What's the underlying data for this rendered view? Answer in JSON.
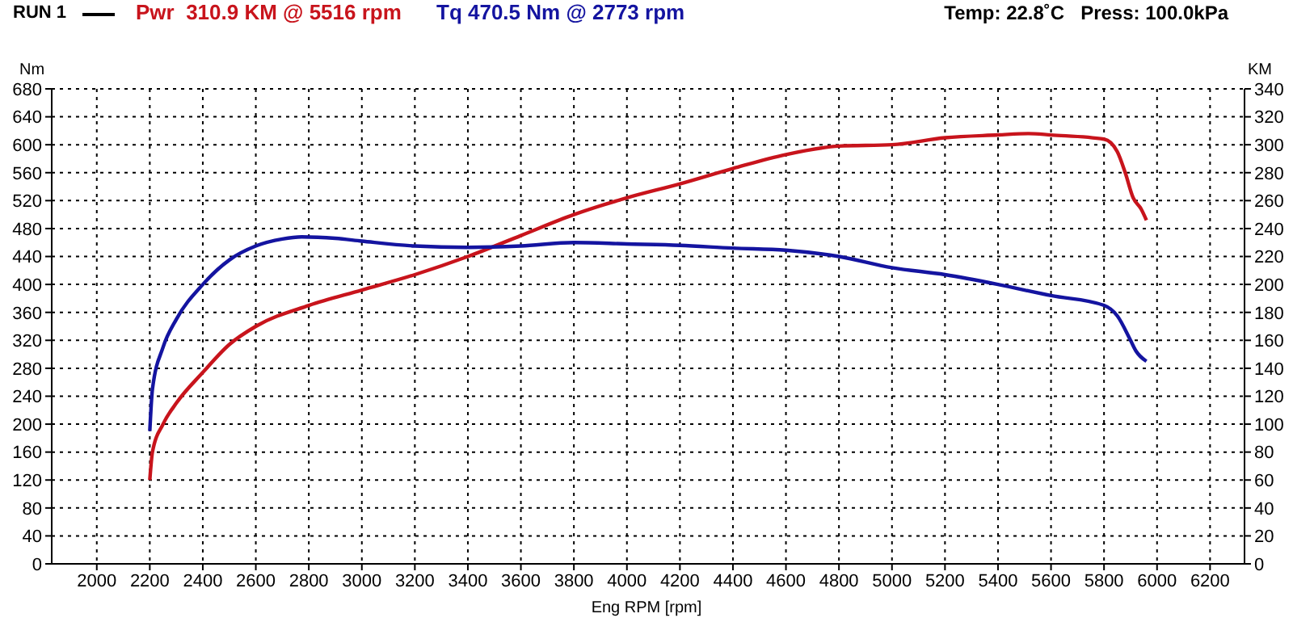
{
  "chart_data": {
    "type": "line",
    "title": "RUN 1",
    "subtitle": "Temp: 22.8˚C   Press: 100.0kPa",
    "xlabel": "Eng RPM [rpm]",
    "ylabel": "Nm",
    "y2label": "KM",
    "xlim": [
      1830,
      6330
    ],
    "xticks": [
      2000,
      2200,
      2400,
      2600,
      2800,
      3000,
      3200,
      3400,
      3600,
      3800,
      4000,
      4200,
      4400,
      4600,
      4800,
      5000,
      5200,
      5400,
      5600,
      5800,
      6000,
      6200
    ],
    "ylim": [
      0,
      680
    ],
    "yticks": [
      0,
      40,
      80,
      120,
      160,
      200,
      240,
      280,
      320,
      360,
      400,
      440,
      480,
      520,
      560,
      600,
      640,
      680
    ],
    "y2lim": [
      0,
      340
    ],
    "y2ticks": [
      0,
      20,
      40,
      60,
      80,
      100,
      120,
      140,
      160,
      180,
      200,
      220,
      240,
      260,
      280,
      300,
      320,
      340
    ],
    "grid": true,
    "legend": "top left",
    "marker": "none",
    "line_style": "solid",
    "series": [
      {
        "name": "Pwr  310.9 KM @ 5516 rpm",
        "color": "#c8141c",
        "axis": "y2",
        "x": [
          2200,
          2210,
          2250,
          2300,
          2400,
          2500,
          2600,
          2800,
          3000,
          3200,
          3400,
          3600,
          3800,
          4000,
          4200,
          4400,
          4600,
          4800,
          5000,
          5200,
          5400,
          5516,
          5600,
          5800,
          5850,
          5880,
          5910,
          5940,
          5960
        ],
        "values": [
          60,
          80,
          100,
          115,
          137,
          157,
          170,
          185,
          196,
          207,
          220,
          235,
          250,
          262,
          272,
          283,
          293,
          299,
          300,
          305,
          307,
          308,
          307,
          304,
          295,
          280,
          262,
          254,
          246
        ]
      },
      {
        "name": "Tq 470.5 Nm @ 2773 rpm",
        "color": "#1414a0",
        "axis": "y",
        "x": [
          2200,
          2210,
          2250,
          2300,
          2400,
          2500,
          2600,
          2700,
          2773,
          2900,
          3000,
          3200,
          3400,
          3600,
          3800,
          4000,
          4200,
          4400,
          4600,
          4800,
          5000,
          5200,
          5400,
          5600,
          5800,
          5850,
          5900,
          5920,
          5960
        ],
        "values": [
          190,
          250,
          310,
          350,
          400,
          435,
          455,
          465,
          468,
          466,
          462,
          455,
          453,
          455,
          460,
          458,
          456,
          452,
          449,
          440,
          424,
          414,
          400,
          384,
          370,
          355,
          320,
          305,
          290
        ]
      }
    ]
  }
}
